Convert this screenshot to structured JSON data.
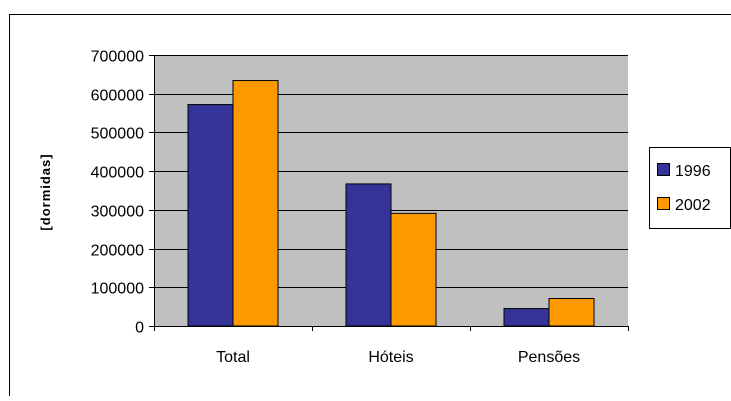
{
  "chart_data": {
    "type": "bar",
    "title": "",
    "xlabel": "",
    "ylabel": "[dormidas]",
    "categories": [
      "Total",
      "Hóteis",
      "Pensões"
    ],
    "series": [
      {
        "name": "1996",
        "values": [
          572000,
          367000,
          45000
        ],
        "color": "#333399"
      },
      {
        "name": "2002",
        "values": [
          634000,
          291000,
          71000
        ],
        "color": "#FF9900"
      }
    ],
    "ylim": [
      0,
      700000
    ],
    "yticks": [
      0,
      100000,
      200000,
      300000,
      400000,
      500000,
      600000,
      700000
    ],
    "ytick_labels": [
      "0",
      "100000",
      "200000",
      "300000",
      "400000",
      "500000",
      "600000",
      "700000"
    ],
    "grid": true,
    "plot_background": "#C0C0C0",
    "legend_position": "right"
  }
}
